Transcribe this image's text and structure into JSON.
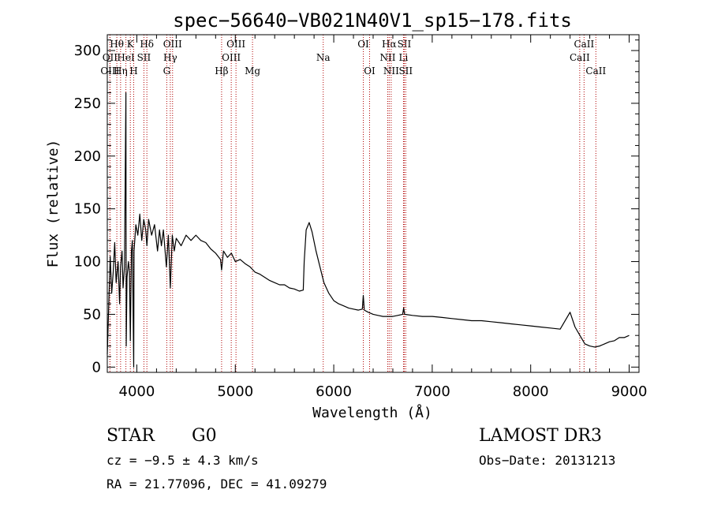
{
  "chart_data": {
    "type": "line",
    "title": "spec−56640−VB021N40V1_sp15−178.fits",
    "xlabel": "Wavelength (Å)",
    "ylabel": "Flux (relative)",
    "xlim": [
      3700,
      9100
    ],
    "ylim": [
      -5,
      315
    ],
    "xticks": [
      4000,
      5000,
      6000,
      7000,
      8000,
      9000
    ],
    "yticks": [
      0,
      50,
      100,
      150,
      200,
      250,
      300
    ],
    "series": [
      {
        "name": "flux",
        "points": [
          [
            3700,
            12
          ],
          [
            3715,
            60
          ],
          [
            3730,
            105
          ],
          [
            3745,
            70
          ],
          [
            3760,
            90
          ],
          [
            3775,
            118
          ],
          [
            3790,
            80
          ],
          [
            3810,
            100
          ],
          [
            3825,
            60
          ],
          [
            3835,
            95
          ],
          [
            3850,
            110
          ],
          [
            3860,
            75
          ],
          [
            3875,
            95
          ],
          [
            3889,
            260
          ],
          [
            3892,
            20
          ],
          [
            3900,
            85
          ],
          [
            3915,
            100
          ],
          [
            3925,
            90
          ],
          [
            3934,
            25
          ],
          [
            3945,
            110
          ],
          [
            3955,
            120
          ],
          [
            3968,
            0
          ],
          [
            3972,
            110
          ],
          [
            3990,
            135
          ],
          [
            4010,
            125
          ],
          [
            4030,
            145
          ],
          [
            4050,
            120
          ],
          [
            4070,
            140
          ],
          [
            4090,
            130
          ],
          [
            4102,
            115
          ],
          [
            4120,
            140
          ],
          [
            4150,
            125
          ],
          [
            4180,
            135
          ],
          [
            4210,
            110
          ],
          [
            4230,
            130
          ],
          [
            4250,
            115
          ],
          [
            4270,
            130
          ],
          [
            4300,
            95
          ],
          [
            4320,
            125
          ],
          [
            4340,
            75
          ],
          [
            4360,
            125
          ],
          [
            4380,
            110
          ],
          [
            4400,
            122
          ],
          [
            4450,
            115
          ],
          [
            4500,
            125
          ],
          [
            4550,
            120
          ],
          [
            4600,
            125
          ],
          [
            4650,
            120
          ],
          [
            4700,
            118
          ],
          [
            4750,
            112
          ],
          [
            4800,
            108
          ],
          [
            4850,
            102
          ],
          [
            4861,
            92
          ],
          [
            4880,
            110
          ],
          [
            4920,
            104
          ],
          [
            4960,
            108
          ],
          [
            5000,
            100
          ],
          [
            5050,
            102
          ],
          [
            5100,
            98
          ],
          [
            5150,
            95
          ],
          [
            5200,
            90
          ],
          [
            5250,
            88
          ],
          [
            5300,
            85
          ],
          [
            5350,
            82
          ],
          [
            5400,
            80
          ],
          [
            5450,
            78
          ],
          [
            5500,
            78
          ],
          [
            5550,
            75
          ],
          [
            5600,
            74
          ],
          [
            5650,
            72
          ],
          [
            5690,
            73
          ],
          [
            5700,
            100
          ],
          [
            5720,
            130
          ],
          [
            5750,
            137
          ],
          [
            5780,
            128
          ],
          [
            5820,
            110
          ],
          [
            5860,
            95
          ],
          [
            5900,
            80
          ],
          [
            5950,
            70
          ],
          [
            6000,
            63
          ],
          [
            6050,
            60
          ],
          [
            6100,
            58
          ],
          [
            6150,
            56
          ],
          [
            6200,
            55
          ],
          [
            6250,
            54
          ],
          [
            6290,
            55
          ],
          [
            6300,
            68
          ],
          [
            6310,
            54
          ],
          [
            6350,
            52
          ],
          [
            6400,
            50
          ],
          [
            6450,
            49
          ],
          [
            6500,
            48
          ],
          [
            6550,
            48
          ],
          [
            6600,
            48
          ],
          [
            6650,
            49
          ],
          [
            6700,
            50
          ],
          [
            6710,
            56
          ],
          [
            6720,
            50
          ],
          [
            6800,
            49
          ],
          [
            6900,
            48
          ],
          [
            7000,
            48
          ],
          [
            7100,
            47
          ],
          [
            7200,
            46
          ],
          [
            7300,
            45
          ],
          [
            7400,
            44
          ],
          [
            7500,
            44
          ],
          [
            7600,
            43
          ],
          [
            7700,
            42
          ],
          [
            7800,
            41
          ],
          [
            7900,
            40
          ],
          [
            8000,
            39
          ],
          [
            8100,
            38
          ],
          [
            8200,
            37
          ],
          [
            8300,
            36
          ],
          [
            8400,
            52
          ],
          [
            8450,
            38
          ],
          [
            8500,
            30
          ],
          [
            8550,
            22
          ],
          [
            8600,
            20
          ],
          [
            8650,
            19
          ],
          [
            8700,
            20
          ],
          [
            8750,
            22
          ],
          [
            8800,
            24
          ],
          [
            8850,
            25
          ],
          [
            8900,
            28
          ],
          [
            8950,
            28
          ],
          [
            9000,
            30
          ]
        ]
      }
    ],
    "spectral_lines": [
      {
        "label": "Hθ",
        "wavelength": 3797,
        "row": 0
      },
      {
        "label": "K",
        "wavelength": 3934,
        "row": 0
      },
      {
        "label": "Hδ",
        "wavelength": 4102,
        "row": 0
      },
      {
        "label": "OIII",
        "wavelength": 4363,
        "row": 0
      },
      {
        "label": "OIII",
        "wavelength": 5007,
        "row": 0
      },
      {
        "label": "OI",
        "wavelength": 6300,
        "row": 0
      },
      {
        "label": "Hα",
        "wavelength": 6563,
        "row": 0
      },
      {
        "label": "SII",
        "wavelength": 6716,
        "row": 0
      },
      {
        "label": "CaII",
        "wavelength": 8542,
        "row": 0
      },
      {
        "label": "OII",
        "wavelength": 3727,
        "row": 1
      },
      {
        "label": "HeI",
        "wavelength": 3889,
        "row": 1
      },
      {
        "label": "SII",
        "wavelength": 4072,
        "row": 1
      },
      {
        "label": "Hγ",
        "wavelength": 4340,
        "row": 1
      },
      {
        "label": "OIII",
        "wavelength": 4959,
        "row": 1
      },
      {
        "label": "Na",
        "wavelength": 5893,
        "row": 1
      },
      {
        "label": "NII",
        "wavelength": 6548,
        "row": 1
      },
      {
        "label": "Li",
        "wavelength": 6708,
        "row": 1
      },
      {
        "label": "CaII",
        "wavelength": 8498,
        "row": 1
      },
      {
        "label": "OIII",
        "wavelength": 3727,
        "row": 2
      },
      {
        "label": "Hη",
        "wavelength": 3835,
        "row": 2
      },
      {
        "label": "H",
        "wavelength": 3968,
        "row": 2
      },
      {
        "label": "G",
        "wavelength": 4304,
        "row": 2
      },
      {
        "label": "Hβ",
        "wavelength": 4861,
        "row": 2
      },
      {
        "label": "Mg",
        "wavelength": 5175,
        "row": 2
      },
      {
        "label": "OI",
        "wavelength": 6364,
        "row": 2
      },
      {
        "label": "NII",
        "wavelength": 6583,
        "row": 2
      },
      {
        "label": "SII",
        "wavelength": 6731,
        "row": 2
      },
      {
        "label": "CaII",
        "wavelength": 8662,
        "row": 2
      }
    ]
  },
  "info": {
    "object_type": "STAR",
    "subclass": "G0",
    "survey": "LAMOST DR3",
    "cz": "cz = −9.5 ± 4.3 km/s",
    "obs_date": "Obs−Date: 20131213",
    "coords": "RA =  21.77096, DEC =  41.09279"
  }
}
